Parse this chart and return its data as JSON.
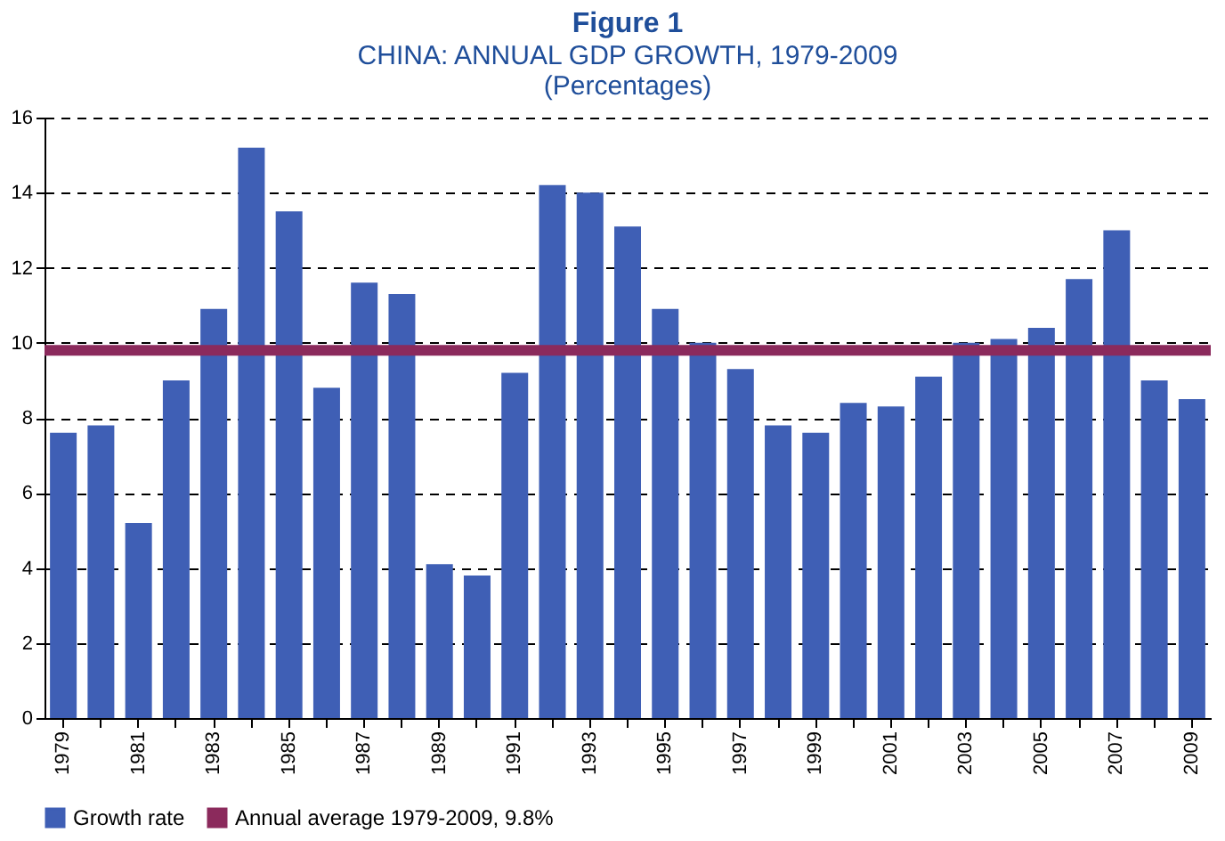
{
  "chart_data": {
    "type": "bar",
    "title": "Figure 1",
    "subtitle": "CHINA: ANNUAL GDP GROWTH, 1979-2009",
    "annotations": [
      "(Percentages)"
    ],
    "categories": [
      "1979",
      null,
      "1981",
      null,
      "1983",
      null,
      "1985",
      null,
      "1987",
      null,
      "1989",
      null,
      "1991",
      null,
      "1993",
      null,
      "1995",
      null,
      "1997",
      null,
      "1999",
      null,
      "2001",
      null,
      "2003",
      null,
      "2005",
      null,
      "2007",
      null,
      "2009"
    ],
    "series": [
      {
        "name": "Growth rate",
        "color": "#3f5fb5",
        "values": [
          7.6,
          7.8,
          5.2,
          9.0,
          10.9,
          15.2,
          13.5,
          8.8,
          11.6,
          11.3,
          4.1,
          3.8,
          9.2,
          14.2,
          14.0,
          13.1,
          10.9,
          10.0,
          9.3,
          7.8,
          7.6,
          8.4,
          8.3,
          9.1,
          10.0,
          10.1,
          10.4,
          11.7,
          13.0,
          9.0,
          8.5
        ]
      }
    ],
    "ref_lines": [
      {
        "axis": "y",
        "value": 9.8,
        "label": "Annual average 1979-2009, 9.8%",
        "color": "#8b2a5c"
      }
    ],
    "ylim": [
      0,
      16
    ],
    "yticks": [
      0,
      2,
      4,
      6,
      8,
      10,
      12,
      14,
      16
    ],
    "grid": "y",
    "legend": "bottom"
  }
}
